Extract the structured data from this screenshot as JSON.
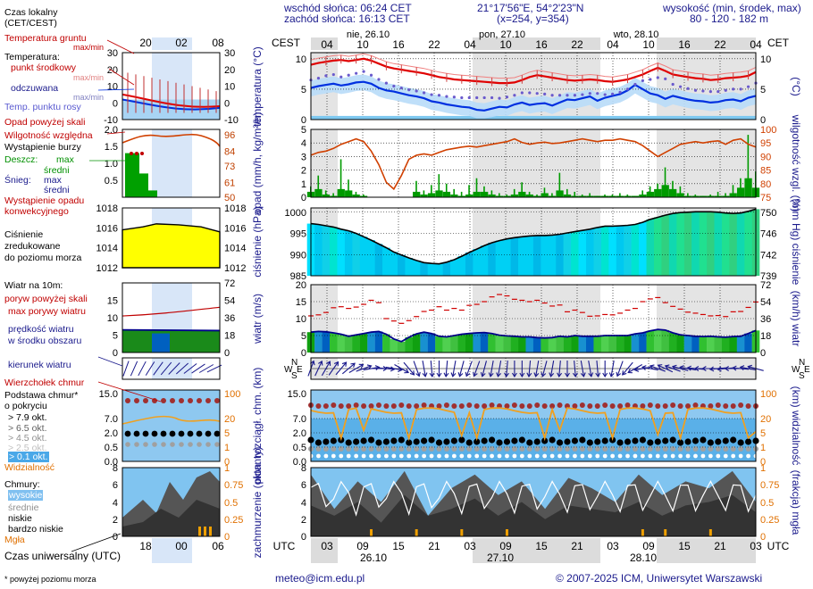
{
  "colors": {
    "temp_red": "#e00000",
    "dew_blue": "#0030e0",
    "rh_orange": "#d04000",
    "rain_green": "#009a00",
    "label_blue": "#1a1a8c",
    "pressure_yellow": "#ffff00",
    "pressure_cyan": "#00e0ff"
  },
  "header": {
    "sunrise": "wschód słońca: 06:24 CET",
    "sunset": "zachód słońca: 16:13 CET",
    "coords": "21°17'56\"E, 54°2'23\"N",
    "grid": "(x=254,  y=354)",
    "height_title": "wysokość (min, środek, max)",
    "height_values": "80 - 120 - 182 m"
  },
  "legend": {
    "local_time": "Czas lokalny",
    "local_time_2": "(CET/CEST)",
    "local_ticks": [
      "20",
      "02",
      "08"
    ],
    "t_ground": "Temperatura gruntu",
    "t_ground_mm": "max/min",
    "t_title": "Temperatura:",
    "t_mid": "punkt środkowy",
    "t_mid_mm": "max/min",
    "t_perceived": "odczuwana",
    "t_perceived_mm": "max/min",
    "t_dew": "Temp. punktu rosy",
    "t_left_ticks": [
      "30",
      "20",
      "10",
      "0",
      "-10"
    ],
    "t_right_ticks": [
      "30",
      "20",
      "10",
      "0",
      "-10"
    ],
    "precip_over": "Opad powyżej skali",
    "rh": "Wilgotność względna",
    "storm": "Wystąpienie burzy",
    "rain": "Deszcz:",
    "rain_max": "max",
    "rain_mid": "średni",
    "snow": "Śnieg:",
    "snow_max": "max",
    "snow_mid": "średni",
    "precip_occ": "Wystąpienie opadu",
    "precip_conv": "konwekcyjnego",
    "precip_left_ticks": [
      "2.0",
      "1.5",
      "1.0",
      "0.5"
    ],
    "rh_right_ticks": [
      "96",
      "84",
      "73",
      "61",
      "50"
    ],
    "press_1": "Ciśnienie",
    "press_2": "zredukowane",
    "press_3": "do poziomu morza",
    "press_left_ticks": [
      "1018",
      "1016",
      "1014",
      "1012"
    ],
    "press_right_ticks": [
      "1018",
      "1016",
      "1014",
      "1012"
    ],
    "wind_title": "Wiatr na 10m:",
    "gust_over": "poryw powyżej skali",
    "gust_max": "max porywy wiatru",
    "wind_speed_1": "prędkość wiatru",
    "wind_speed_2": "w środku obszaru",
    "wind_left_ticks": [
      "15",
      "10",
      "5",
      "0"
    ],
    "wind_right_ticks": [
      "72",
      "54",
      "36",
      "18",
      "0"
    ],
    "wind_dir": "kierunek wiatru",
    "cloud_top": "Wierzchołek chmur",
    "cloud_base_1": "Podstawa chmur*",
    "cloud_base_2": "o pokryciu",
    "cov_79": "> 7.9 okt.",
    "cov_65": "> 6.5 okt.",
    "cov_45": "> 4.5 okt.",
    "cov_25": "> 2.5 okt.",
    "cov_01": "> 0.1 okt.",
    "visibility": "Widzialność",
    "cb_left_ticks": [
      "15.0",
      "7.0",
      "2.0",
      "0.5",
      "0.0"
    ],
    "cb_right_ticks": [
      "100",
      "20",
      "5",
      "1",
      "0"
    ],
    "clouds": "Chmury:",
    "high": "wysokie",
    "mid": "średnie",
    "low": "niskie",
    "vlow": "bardzo niskie",
    "fog": "Mgła",
    "cl_left_ticks": [
      "8",
      "6",
      "4",
      "2",
      "0"
    ],
    "cl_right_ticks": [
      "1",
      "0.75",
      "0.5",
      "0.25",
      "0"
    ],
    "utc": "Czas uniwersalny (UTC)",
    "utc_ticks": [
      "18",
      "00",
      "06"
    ],
    "footnote": "* powyżej poziomu morza"
  },
  "footer": {
    "email": "meteo@icm.edu.pl",
    "copyright": "© 2007-2025 ICM, Uniwersytet Warszawski"
  },
  "chart_data": {
    "type": "line",
    "tz_left": "CEST",
    "tz_right": "CET",
    "utc_label": "UTC",
    "days": [
      "nie, 26.10",
      "pon, 27.10",
      "wto, 28.10"
    ],
    "local_ticks": [
      "04",
      "10",
      "16",
      "22",
      "04",
      "10",
      "16",
      "22",
      "04",
      "10",
      "16",
      "22",
      "04"
    ],
    "utc_ticks": [
      "03",
      "09",
      "15",
      "21",
      "03",
      "09",
      "15",
      "21",
      "03",
      "09",
      "15",
      "21",
      "03"
    ],
    "utc_days": [
      "26.10",
      "27.10",
      "28.10"
    ],
    "panels": {
      "temperature": {
        "ylabel_left": "temperatura (°C)",
        "ylabel_right": "(°C)",
        "ylim": [
          0,
          11
        ],
        "ticks": [
          "0",
          "5",
          "10"
        ],
        "temp": [
          9.0,
          9.3,
          9.5,
          9.7,
          9.8,
          9.6,
          9.8,
          10.0,
          9.7,
          9.2,
          8.7,
          8.4,
          8.2,
          8.0,
          7.8,
          7.6,
          7.3,
          7.0,
          6.8,
          6.6,
          6.5,
          6.4,
          6.3,
          6.2,
          6.1,
          6.0,
          6.0,
          6.1,
          6.5,
          7.0,
          7.3,
          7.1,
          6.9,
          6.7,
          6.5,
          6.4,
          6.5,
          6.6,
          6.5,
          6.3,
          6.2,
          6.4,
          6.6,
          7.0,
          7.4,
          8.0,
          8.5,
          8.0,
          7.4,
          7.2,
          7.0,
          6.8,
          6.7,
          6.5,
          6.6,
          6.8,
          6.9,
          7.0,
          7.2,
          7.8
        ],
        "dewpoint": [
          5.2,
          5.5,
          5.7,
          5.9,
          5.6,
          5.8,
          6.1,
          6.2,
          5.9,
          5.2,
          4.8,
          4.6,
          4.3,
          4.0,
          3.8,
          3.5,
          3.0,
          2.8,
          2.5,
          2.3,
          2.1,
          2.0,
          1.6,
          1.5,
          1.8,
          2.1,
          2.0,
          2.5,
          2.8,
          2.4,
          2.6,
          2.7,
          2.3,
          2.8,
          3.3,
          3.2,
          3.5,
          3.8,
          3.1,
          3.6,
          3.9,
          4.2,
          4.8,
          5.7,
          5.0,
          4.3,
          4.0,
          3.4,
          3.9,
          3.6,
          3.3,
          3.1,
          3.0,
          2.8,
          2.9,
          3.2,
          3.3,
          3.0,
          3.6,
          3.9
        ],
        "perceived": [
          6.5,
          6.8,
          7.2,
          7.4,
          7.0,
          7.3,
          7.6,
          7.9,
          7.3,
          6.6,
          6.0,
          5.5,
          5.2,
          4.9,
          4.7,
          4.4,
          4.1,
          4.0,
          3.8,
          3.7,
          3.6,
          3.6,
          3.6,
          3.6,
          3.6,
          3.5,
          3.7,
          4.0,
          4.4,
          4.4,
          4.3,
          4.2,
          4.0,
          4.0,
          4.0,
          4.0,
          4.1,
          4.3,
          4.3,
          4.1,
          4.2,
          4.5,
          5.0,
          5.8,
          6.4,
          6.6,
          6.9,
          6.7,
          5.8,
          5.4,
          5.1,
          4.8,
          4.7,
          4.6,
          4.6,
          4.8,
          5.0,
          5.0,
          5.4,
          6.0
        ]
      },
      "precipitation": {
        "ylabel_left": "opad (mm/h, kg/m²/h)",
        "ylabel_right": "wilgotność wzgl. (%)",
        "ylim": [
          0,
          5
        ],
        "ticks": [
          "0",
          "1",
          "2",
          "3",
          "4",
          "5"
        ],
        "rh_ticks": [
          "75",
          "80",
          "85",
          "90",
          "95",
          "100"
        ],
        "rh": [
          90.5,
          91.5,
          92.0,
          93.0,
          94.5,
          95.5,
          96.5,
          95.5,
          92.0,
          87.0,
          80.5,
          78.0,
          83.0,
          89.0,
          90.5,
          91.0,
          90.5,
          91.5,
          92.5,
          93.0,
          93.5,
          93.8,
          93.5,
          94.0,
          94.5,
          95.0,
          95.5,
          96.5,
          95.2,
          94.5,
          95.0,
          95.3,
          94.8,
          95.0,
          95.5,
          96.0,
          96.5,
          96.0,
          95.5,
          96.0,
          96.0,
          96.5,
          96.0,
          95.5,
          94.0,
          92.0,
          90.0,
          91.5,
          93.0,
          94.5,
          95.0,
          95.5,
          95.0,
          95.5,
          95.8,
          94.5,
          96.0,
          96.5,
          94.5,
          93.5
        ],
        "rain_max": [
          0.8,
          1.6,
          0.5,
          0.3,
          2.8,
          1.3,
          0.4,
          0.2,
          0,
          0,
          0,
          0,
          0,
          0,
          1.2,
          0.5,
          0.9,
          1.7,
          1.0,
          0.6,
          0.4,
          0.9,
          1.4,
          0.8,
          0.5,
          0.3,
          0.2,
          0.6,
          1.1,
          0.4,
          0.2,
          0.7,
          0.3,
          1.8,
          0.6,
          0.4,
          0.2,
          0.3,
          0.1,
          0.2,
          0.2,
          0.3,
          0.2,
          0.1,
          0.5,
          0.8,
          1.0,
          2.2,
          1.2,
          0.8,
          0.3,
          0.2,
          0.1,
          0.2,
          0.4,
          0.3,
          0.9,
          1.4,
          4.6,
          1.9
        ],
        "rain_mid": [
          0.4,
          0.6,
          0.2,
          0.1,
          0.6,
          0.5,
          0.2,
          0.1,
          0,
          0,
          0,
          0,
          0,
          0,
          0.4,
          0.2,
          0.3,
          0.5,
          0.4,
          0.2,
          0.1,
          0.2,
          0.4,
          0.4,
          0.2,
          0.1,
          0.1,
          0.2,
          0.4,
          0.2,
          0.1,
          0.3,
          0.1,
          0.5,
          0.2,
          0.1,
          0.1,
          0.1,
          0.1,
          0.1,
          0.1,
          0.1,
          0.1,
          0.1,
          0.2,
          0.4,
          0.6,
          0.9,
          0.6,
          0.3,
          0.1,
          0.1,
          0.1,
          0.1,
          0.1,
          0.1,
          0.3,
          0.7,
          1.4,
          0.7
        ]
      },
      "pressure": {
        "ylabel_left": "ciśnienie (hPa)",
        "ylabel_right": "(mm Hg) ciśnienie",
        "ylim": [
          985,
          1001
        ],
        "ticks": [
          "985",
          "990",
          "995",
          "1000"
        ],
        "mmhg_ticks": [
          "739",
          "742",
          "746",
          "750"
        ],
        "values": [
          997.3,
          997.1,
          996.8,
          996.5,
          996.0,
          995.6,
          995.0,
          994.2,
          993.4,
          992.5,
          991.6,
          990.6,
          989.9,
          989.2,
          988.6,
          988.1,
          987.9,
          987.8,
          988.2,
          988.8,
          989.6,
          990.5,
          991.3,
          992.1,
          992.8,
          993.3,
          993.7,
          994.0,
          994.2,
          994.4,
          994.5,
          994.5,
          994.6,
          994.8,
          995.1,
          995.4,
          995.7,
          996.0,
          996.4,
          996.7,
          996.7,
          996.8,
          996.9,
          997.1,
          997.6,
          998.3,
          998.8,
          999.3,
          999.7,
          999.9,
          1000.0,
          1000.1,
          1000.1,
          1000.1,
          1000.0,
          999.8,
          999.7,
          999.8,
          1000.2,
          1000.7
        ]
      },
      "wind": {
        "ylabel_left": "wiatr (m/s)",
        "ylabel_right": "(km/h) wiatr",
        "ylim": [
          0,
          20
        ],
        "ticks": [
          "0",
          "5",
          "10",
          "15",
          "20"
        ],
        "kmh_ticks": [
          "0",
          "18",
          "36",
          "54",
          "72"
        ],
        "speed": [
          6.0,
          6.2,
          6.1,
          5.8,
          5.4,
          4.8,
          5.2,
          5.6,
          6.0,
          6.2,
          5.4,
          4.0,
          3.2,
          4.5,
          5.5,
          6.0,
          5.6,
          4.8,
          4.6,
          5.0,
          5.4,
          5.6,
          5.8,
          5.9,
          5.6,
          5.1,
          4.9,
          4.8,
          4.6,
          4.6,
          4.4,
          4.3,
          4.4,
          4.8,
          4.6,
          5.0,
          4.8,
          4.8,
          4.8,
          5.0,
          5.0,
          5.0,
          5.0,
          5.5,
          5.8,
          6.4,
          6.8,
          6.6,
          5.8,
          5.2,
          5.0,
          4.8,
          4.7,
          4.8,
          4.6,
          4.5,
          4.7,
          4.8,
          5.6,
          6.5
        ],
        "gust_max": [
          10.8,
          11.1,
          11.8,
          13.2,
          13.5,
          13.0,
          13.4,
          14.2,
          15.4,
          14.7,
          10.0,
          9.3,
          8.6,
          9.4,
          10.6,
          12.1,
          12.5,
          13.5,
          12.5,
          13.0,
          12.5,
          13.9,
          14.2,
          15.0,
          16.4,
          17.1,
          16.7,
          15.7,
          15.4,
          15.0,
          15.4,
          14.6,
          13.7,
          14.0,
          12.0,
          12.5,
          11.8,
          10.7,
          10.8,
          11.2,
          11.1,
          11.6,
          12.5,
          13.0,
          15.0,
          15.8,
          16.2,
          14.7,
          13.6,
          12.8,
          11.9,
          11.6,
          11.2,
          10.8,
          10.9,
          10.6,
          12.0,
          12.1,
          13.3,
          14.9
        ]
      },
      "wind_direction": {
        "ylabel": "kierunek wiatru",
        "compass": [
          "N",
          "W",
          "S",
          "E"
        ],
        "deg": [
          200,
          205,
          210,
          215,
          220,
          230,
          240,
          250,
          260,
          270,
          275,
          280,
          300,
          320,
          340,
          350,
          355,
          0,
          5,
          10,
          15,
          20,
          20,
          15,
          10,
          10,
          5,
          0,
          0,
          5,
          10,
          15,
          10,
          5,
          0,
          355,
          350,
          350,
          355,
          0,
          10,
          20,
          40,
          60,
          80,
          100,
          110,
          115,
          110,
          105,
          100,
          95,
          90,
          90,
          85,
          85,
          90,
          95,
          100,
          105
        ]
      },
      "cloud_base": {
        "ylabel_left": "pion. rozciągł. chm. (km)",
        "ylabel_right": "(km) widzialność",
        "ticks_left": [
          "0.0",
          "0.5",
          "2.0",
          "7.0",
          "15.0"
        ],
        "ticks_right": [
          "0",
          "1",
          "5",
          "20",
          "100"
        ]
      },
      "clouds": {
        "ylabel_left": "zachmurzenie (oktanty)",
        "ylabel_right": "(frakcja) mgła",
        "ticks_left": [
          "0",
          "2",
          "4",
          "6",
          "8"
        ],
        "ticks_right": [
          "0",
          "0.25",
          "0.5",
          "0.75",
          "1"
        ]
      }
    }
  }
}
